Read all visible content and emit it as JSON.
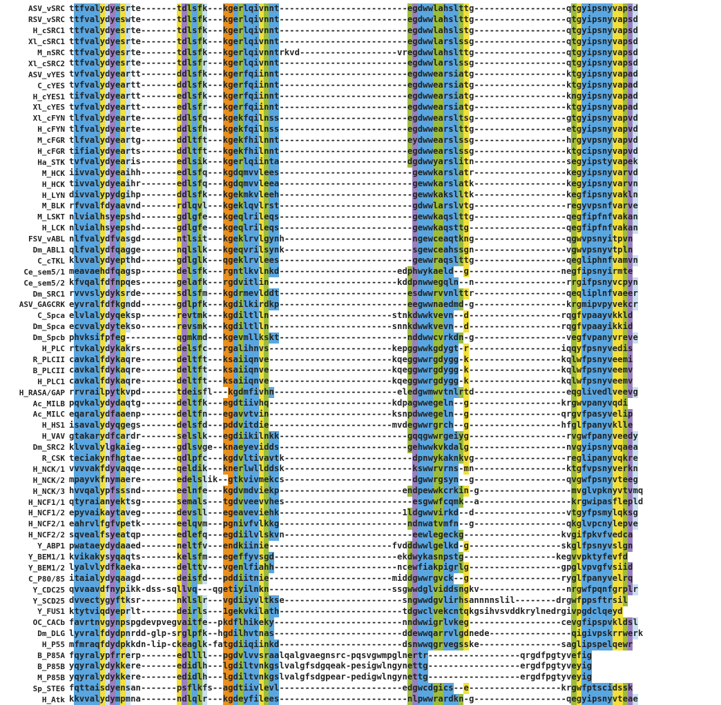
{
  "colors": {
    "Y": "#f2df3a",
    "B": "#5aa6e0",
    "P": "#9b7fc0",
    "O": "#e8901f",
    "G": "#9cbc3c",
    "L": "#c8e0f0"
  },
  "rows": [
    {
      "name": "ASV_vSRC",
      "seq": "ttfvalydyesrte-------tdlsfk---kgerlqivnnt-------------------------egdwwlahslttg------------------qtgyipsnyvapsd"
    },
    {
      "name": "RSV_vSRC",
      "seq": "ttfvalydyeswte-------tdlsfk---kgerlqivnnt-------------------------egdwwlahslttg------------------qtgyipsnyvapsd"
    },
    {
      "name": "H_cSRC1",
      "seq": "ttfvalydyesrte-------tdlsfk---kgerlqivnnt-------------------------egdwwlahslstg------------------qtgyipsnyvapsd"
    },
    {
      "name": "Xl_cSRC1",
      "seq": "ttfvalydyesrte-------tdlsfk---kgerlqivnnt-------------------------egdwwlarslssg------------------qtgyipsnyvapsd"
    },
    {
      "name": "M_nSRC",
      "seq": "ttfvalydyesrte-------tdlsfk---kgerlqivnntrkvd-------------------vregdwwlahslttg------------------qtgyipsnyvapsd"
    },
    {
      "name": "Xl_cSRC2",
      "seq": "ttfvalydyesrte-------tdlsfr---kgerlqivnnt-------------------------egdwwlarslssg------------------qtgyipsnyvapsd"
    },
    {
      "name": "ASV_vYES",
      "seq": "tvfvalydyeartt-------ddlsfk---kgerfqiinnt-------------------------egdwwearsiatg------------------ktgyipsnyvapad"
    },
    {
      "name": "C_cYES",
      "seq": "tvfvalydyeartt-------ddlsfk---kgerfqiinnt-------------------------egdwwearsiatg------------------ktgyipsnyvapad"
    },
    {
      "name": "H_cYES1",
      "seq": "tifvalydyeartt-------edlsfk---kgerfqiinnt-------------------------egdwwearsiatg------------------kngyipsnyvapad"
    },
    {
      "name": "Xl_cYES",
      "seq": "tvfvalydyeartt-------edlsfr---kgerfqiinnt-------------------------egdwwearsiatg------------------ktgyipsnyvapad"
    },
    {
      "name": "Xl_cFYN",
      "seq": "tlfvalydyearte-------ddlsfq---kgekfqilnss-------------------------egdwwearsltsg------------------gtgyipsnyvapvd"
    },
    {
      "name": "H_cFYN",
      "seq": "tlfvalydyeartе-------ddlsfh---kgekfqilnss-------------------------egdwwearslttg------------------etgyipsnyvapvd"
    },
    {
      "name": "M_cFGR",
      "seq": "tlfvalydyeartg-------ddltft---kgekfhilnnt-------------------------eydwwearslssg------------------hrgyvpsnyvapvd"
    },
    {
      "name": "H_cFGR",
      "seq": "tifialydyearts-------ddltft---kgekfhilnnt-------------------------egdwwearslssg------------------ktgcipsnyvapvd"
    },
    {
      "name": "Ha_STK",
      "seq": "tvfvalydyearis-------edlsik---kgerlqiinta-------------------------dgdwwyarslitn------------------segyipstyvapek"
    },
    {
      "name": "M_HCK",
      "seq": "iivvalydyeaihh-------edlsfq---kgdqmvvlees--------------------------gewwkarslatr------------------kegyipsnyvarvd"
    },
    {
      "name": "H_HCK",
      "seq": "tivvalydyeaihr-------edlsfq---kgdqmvvleea--------------------------gewwkarslatk------------------kegyipsnyvarvn"
    },
    {
      "name": "H_LYN",
      "seq": "divvalypydgihp-------ddlsfk---kgekmkvleeh--------------------------gewwkakslltk------------------kegfipsnyvakln"
    },
    {
      "name": "M_BLK",
      "seq": "rfvvalfdyaavnd-------rdlqvl---kgeklqvlrst--------------------------gdwwlarslvtg------------------regyvpsnfvarve"
    },
    {
      "name": "M_LSKT",
      "seq": "nlvialhsyepshd-------gdlgfe---kgeqlrileqs--------------------------gewwkaqslttg------------------qegfipfnfvakan"
    },
    {
      "name": "H_LCK",
      "seq": "nlvialhsyepshd-------gdlgfe---kgeqlrileqs--------------------------gewwkaqsttg-------------------qegfipfnfvakan"
    },
    {
      "name": "FSV_vABL",
      "seq": "nlfvalydfvasgd-------ntlsit---kgeklrvlgynh-------------------------ngewceaqtkng------------------qgwvpsnyitpvn"
    },
    {
      "name": "Dm_ABL1",
      "seq": "qlfvalydfqagge-------nqlslk---kgeqvrilsynk-------------------------sgewceahssgn------------------vgwvpsnyvtpln"
    },
    {
      "name": "C_cTKL",
      "seq": "klvvalydyepthd-------gdlglk---qgeklrvlees--------------------------gewwraqslttg------------------qegliphnfvamvn"
    },
    {
      "name": "Ce_sem5/1",
      "seq": "meavaehdfqagsp-------delsfk---rgntlkvlnkd-----------------------edphwykaeld--g------------------negfipsnyirmte"
    },
    {
      "name": "Ce_sem5/2",
      "seq": "kfvqalfdfnpqes-------gelafk---rgdvitlin-------------------------kddpnwwegqln--n------------------rrgifpsnyvcpyn"
    },
    {
      "name": "Dm_SRC1",
      "seq": "rvvvslydyksrde-------sdlsfm---kgdrmevlddt-------------------------esdwwrvvnlttr------------------qeqliplnfvaeer"
    },
    {
      "name": "ASV_GAGCRK",
      "seq": "eyvralfdfkgndd-------gdlpfk---kgdilkirdkp-------------------------eegwwnaedmd-g------------------krgmipvpyvekcr"
    },
    {
      "name": "C_Spca",
      "seq": "elvlalydyqeksp-------revtmk---kgdiltlln------------------------stnkdwwkvevn--d------------------rqgfvpaayvkkld"
    },
    {
      "name": "Dm_Spca",
      "seq": "ecvvalydytekso-------revsmk---kgdiltlln------------------------snnkdwwkvevn--d------------------rqgfvpaayikkid"
    },
    {
      "name": "Dm_Spcb",
      "seq": "phvksifpfeg----------qgmkmd---kgevmllkskt-------------------------nddwwcvrkdn-g------------------vegfvpanyvreve"
    },
    {
      "name": "H_PLC",
      "seq": "rtvkalydykakrs-------delsfc---rgalihnvs------------------------kepggwwkgdygt-r------------------iqqyfpsnyvedis"
    },
    {
      "name": "R_PLCII",
      "seq": "cavkalfdykaqre-------deltft---ksaiiqnve------------------------kqeggwwrgdygg-k------------------kqlwfpsnyveemi"
    },
    {
      "name": "B_PLCII",
      "seq": "cavkalfdykaqre-------deltft---ksaiiqnve------------------------kqeggwwrgdygg-k------------------kqlwfpsnyveemv"
    },
    {
      "name": "H_PLC1",
      "seq": "cavkalfdykaqre-------deltft---ksaiiqnve------------------------kqeggwwrgdygg-k------------------kqlwfpsnyveemv"
    },
    {
      "name": "H_RASA/GAP",
      "seq": "rrvrailpytkvpd-------tdeisfl---kgdmfivhn------------------------eledgwmwvtnlrtd------------------eqglivedlveevg"
    },
    {
      "name": "Ac_MILB",
      "seq": "pqvkalydydaqtg-------deltfk---egdtiivhq------------------------kdpagwwegeln--g------------------krgwvpanyvqdi"
    },
    {
      "name": "Ac_MILC",
      "seq": "eqaralydfaaenp-------deltfn---egavvtvin------------------------ksnpdwwegeln--g------------------qrgvfpasyvelip"
    },
    {
      "name": "H_HS1",
      "seq": "isavalydyqgegs-------delsfd---pddvitdie------------------------mvdegwwrgrch--g------------------hfglfpanyvklle"
    },
    {
      "name": "H_VAV",
      "seq": "gtakarydfcardr-------selslk---egdiikilnkk-------------------------gqqgwwrgeiyg-------------------rvgwfpanyveedy"
    },
    {
      "name": "Dm_SRC2",
      "seq": "klvvalylgkaieg-------gdlsvge--knaeyevidds-------------------------gehwwkvkdalg-------------------nvgyipsnyvqaea"
    },
    {
      "name": "R_CSK",
      "seq": "teciakynfhgtae-------qdlpfc---kgdvltivavtk-------------------------dpnwykaknkvg------------------reglipanyvqkre"
    },
    {
      "name": "H_NCK/1",
      "seq": "vvvvakfdyvaqqe-------qeldik---knerlwllddsk-------------------------kswwrvrns-mn------------------ktgfvpsnyverkn"
    },
    {
      "name": "H_NCK/2",
      "seq": "mpayvkfnymaere-------edelslik--gtkvivmekcs-------------------------dgwwrgsyn--g------------------qvgwfpsnyvteeg"
    },
    {
      "name": "H_NCK/3",
      "seq": "hvvqalypfsssnd-------eelnfe---kgdvmdviekp------------------------endpewwkcrkin-g------------------mvglvpknyvtvmq"
    },
    {
      "name": "H_NCF1/1",
      "seq": "qtyraianyektsg-------semals---tgdvveevvhes-------------------------esgwwfcqmk--a------------------krgwipasflepld"
    },
    {
      "name": "H_NCF1/2",
      "seq": "epyvaikaytaveg-------devsll---egeaveviehk------------------------1ldgwwvirkd--d------------------vtgyfpsmylqksg"
    },
    {
      "name": "H_NCF2/1",
      "seq": "eahrvlfgfvpetk-------eelqvm---pgnivfvlkkg-------------------------ndnwatvmfn--g------------------qkglvpcnylepve"
    },
    {
      "name": "H_NCF2/2",
      "seq": "sqvealfsyeatqp-------edlefq---egdiilvlskvn-------------------------eewlegeckg-------------------kvgifpkvfvedca"
    },
    {
      "name": "Y_ABP1",
      "seq": "pwataeydydaaed-------neltfv---endkiinie------------------------fvdddwwlgelkd-g------------------skglfpsnyvslgn"
    },
    {
      "name": "Y_BEM1/1",
      "seq": "kvikakysyqaqts-------kelsfm---egeffyvsgd------------------------ekdwykasnpstg------------------kegvvpktyfevfd"
    },
    {
      "name": "Y_BEM1/2",
      "seq": "lyalvlydfkaeka-------delttv---vgenlfiahh------------------------ncewfiakpigrlg------------------gpglvpvgfvsiid"
    },
    {
      "name": "C_P80/85",
      "seq": "itaialydyqaagd-------deisfd---pddiitnie------------------------middgwwrgvck--g------------------ryglfpanyvelrq"
    },
    {
      "name": "Y_CDC25",
      "seq": "qvvaavdfnypikk-dss-sqllvq---qgetiyilnkn------------------------ssgwwdglviddsngkv-----------------nrgwfpqnfgrplr"
    },
    {
      "name": "Y_SCD25",
      "seq": "dvvectygyftksr-------nklslr---vgdiiyvltkse-----------------------sngwwdgvlirhsannnnslil--------drgwfppsftrsil"
    },
    {
      "name": "Y_FUS1",
      "seq": "ktytviqdyeprlt-------deirls---1gekvkilath------------------------tdgwclvekcntqkgsihvsvddkrylnedrgivpgdclqeyd"
    },
    {
      "name": "OC_CACb",
      "seq": "favrtnvgynpspgdevpvegvaitfe--pkdflhikeky-------------------------nndwwigrlvkeg------------------cevgfipspvkldsl"
    },
    {
      "name": "Dm_DLG",
      "seq": "lyvralfdydpnrdd-glp-srglpfk--hgdilhvtnas-------------------------ddewwqarrvlgdnede----------------qigivpskrrwerk"
    },
    {
      "name": "H_P55",
      "seq": "mfmraqfdydpkkdn-lip-ckeaglk-fatgdiiqiinkd------------------------dsnwwqgrvegsske----------------saglipspelqewr"
    },
    {
      "name": "B_P85A",
      "seq": "fqyralypfrrerp-------edllll---pgdvlvvsraalqalgvaegnsrc-pqsvgwmpglnertr------------------qrgdfpgtyvefig"
    },
    {
      "name": "B_P85B",
      "seq": "yqyralydykkere-------edidlh---lgdiltvnkgslvalgfsdgqeak-pesigwlngynettg------------------ergdfpgtyveyig"
    },
    {
      "name": "M_P85B",
      "seq": "yqyralydykkere-------edidlh---lgdiltvnkgslvalgfsdgpear-pedigwlngynettg------------------ergdfpgtyveyig"
    },
    {
      "name": "Sp_STE6",
      "seq": "fqttaisdyensan-------psflkfs--agdtiivlevl------------------------edgwcdgics--e------------------krgwfptscidssk"
    },
    {
      "name": "H_Atk",
      "seq": "kkvvalydympmna-------ndlqlr---kgdeyfilees-------------------------nlpwwrardkn-g------------------qegyipsnyvteae"
    }
  ]
}
